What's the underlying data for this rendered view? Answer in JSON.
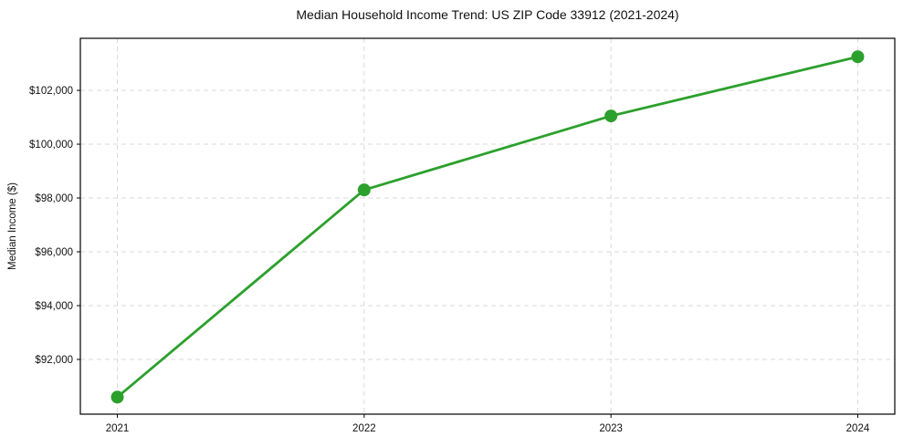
{
  "chart": {
    "title": "Median Household Income Trend: US ZIP Code 33912 (2021-2024)",
    "ylabel": "Median Income ($)"
  },
  "chart_data": {
    "type": "line",
    "title": "Median Household Income Trend: US ZIP Code 33912 (2021-2024)",
    "xlabel": "",
    "ylabel": "Median Income ($)",
    "x": [
      2021,
      2022,
      2023,
      2024
    ],
    "xtick_labels": [
      "2021",
      "2022",
      "2023",
      "2024"
    ],
    "series": [
      {
        "name": "Median Household Income",
        "values": [
          90600,
          98300,
          101050,
          103250
        ]
      }
    ],
    "yticks": [
      92000,
      94000,
      96000,
      98000,
      100000,
      102000
    ],
    "ytick_labels": [
      "$92,000",
      "$94,000",
      "$96,000",
      "$98,000",
      "$100,000",
      "$102,000"
    ],
    "xlim": [
      2020.85,
      2024.15
    ],
    "ylim": [
      89965,
      103935
    ],
    "grid": true,
    "grid_style": "dashed",
    "legend": false,
    "line_color": "#2ca02c",
    "marker": "circle",
    "marker_color": "#2ca02c",
    "background_color": "#ffffff",
    "text_color": "#111111",
    "grid_color": "#d9d9d9"
  }
}
